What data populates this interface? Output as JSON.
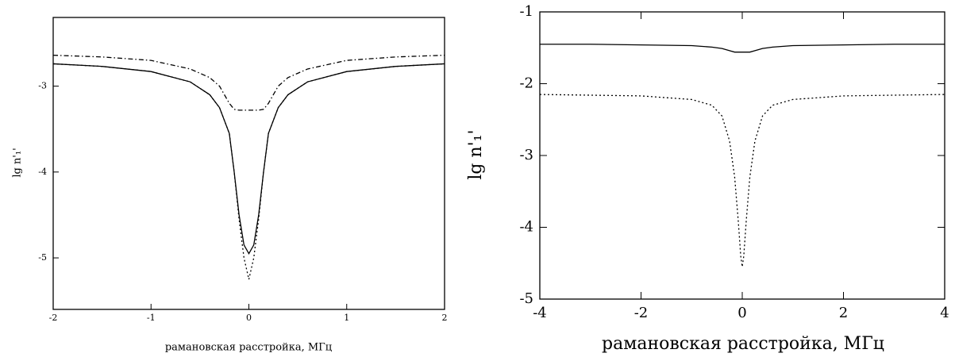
{
  "chart_data": [
    {
      "type": "line",
      "xlabel": "рамановская расстройка, МГц",
      "ylabel": "lg n'₁'",
      "xlim": [
        -2,
        2
      ],
      "ylim": [
        -5.6,
        -2.2
      ],
      "xticks": [
        -2,
        -1,
        0,
        1,
        2
      ],
      "yticks": [
        -5,
        -4,
        -3
      ],
      "ticks_all_sides": false,
      "x": [
        -2,
        -1.5,
        -1,
        -0.6,
        -0.4,
        -0.3,
        -0.2,
        -0.15,
        -0.1,
        -0.05,
        0,
        0.05,
        0.1,
        0.15,
        0.2,
        0.3,
        0.4,
        0.6,
        1,
        1.5,
        2
      ],
      "series": [
        {
          "color": "#000000",
          "dash": "solid",
          "values": [
            -2.74,
            -2.77,
            -2.83,
            -2.95,
            -3.1,
            -3.25,
            -3.55,
            -4.0,
            -4.5,
            -4.85,
            -4.95,
            -4.85,
            -4.5,
            -4.0,
            -3.55,
            -3.25,
            -3.1,
            -2.95,
            -2.83,
            -2.77,
            -2.74
          ]
        },
        {
          "color": "#000000",
          "dash": "dotted",
          "values": [
            -2.74,
            -2.77,
            -2.83,
            -2.95,
            -3.1,
            -3.25,
            -3.55,
            -4.0,
            -4.55,
            -5.0,
            -5.25,
            -5.0,
            -4.55,
            -4.0,
            -3.55,
            -3.25,
            -3.1,
            -2.95,
            -2.83,
            -2.77,
            -2.74
          ]
        },
        {
          "color": "#000000",
          "dash": "dashdot",
          "values": [
            -2.64,
            -2.66,
            -2.7,
            -2.8,
            -2.9,
            -3.0,
            -3.2,
            -3.27,
            -3.28,
            -3.28,
            -3.28,
            -3.28,
            -3.28,
            -3.27,
            -3.2,
            -3.0,
            -2.9,
            -2.8,
            -2.7,
            -2.66,
            -2.64
          ]
        }
      ]
    },
    {
      "type": "line",
      "xlabel": "рамановская расстройка, МГц",
      "ylabel": "lg n'₁'",
      "xlim": [
        -4,
        4
      ],
      "ylim": [
        -5,
        -1
      ],
      "xticks": [
        -4,
        -2,
        0,
        2,
        4
      ],
      "yticks": [
        -5,
        -4,
        -3,
        -2,
        -1
      ],
      "ticks_all_sides": true,
      "x": [
        -4,
        -3,
        -2,
        -1,
        -0.6,
        -0.4,
        -0.25,
        -0.15,
        -0.08,
        -0.03,
        0,
        0.03,
        0.08,
        0.15,
        0.25,
        0.4,
        0.6,
        1,
        2,
        3,
        4
      ],
      "series": [
        {
          "color": "#000000",
          "dash": "solid",
          "values": [
            -1.45,
            -1.45,
            -1.46,
            -1.47,
            -1.49,
            -1.51,
            -1.54,
            -1.56,
            -1.56,
            -1.56,
            -1.56,
            -1.56,
            -1.56,
            -1.56,
            -1.54,
            -1.51,
            -1.49,
            -1.47,
            -1.46,
            -1.45,
            -1.45
          ]
        },
        {
          "color": "#000000",
          "dash": "dotted",
          "values": [
            -2.15,
            -2.16,
            -2.17,
            -2.22,
            -2.3,
            -2.45,
            -2.8,
            -3.3,
            -3.9,
            -4.4,
            -4.55,
            -4.4,
            -3.9,
            -3.3,
            -2.8,
            -2.45,
            -2.3,
            -2.22,
            -2.17,
            -2.16,
            -2.15
          ]
        }
      ]
    }
  ]
}
